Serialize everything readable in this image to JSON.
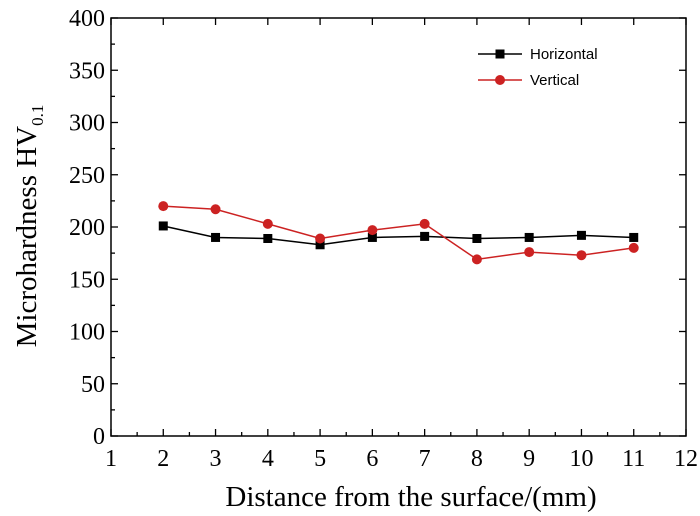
{
  "chart_data": {
    "type": "line",
    "title": "",
    "xlabel": "Distance from the surface/(mm)",
    "ylabel": "Microhardness HV",
    "ylabel_subscript": "0.1",
    "xlim": [
      1,
      12
    ],
    "ylim": [
      0,
      400
    ],
    "xticks": [
      1,
      2,
      3,
      4,
      5,
      6,
      7,
      8,
      9,
      10,
      11,
      12
    ],
    "yticks": [
      0,
      50,
      100,
      150,
      200,
      250,
      300,
      350,
      400
    ],
    "grid": false,
    "legend_position": "top-right",
    "x": [
      2,
      3,
      4,
      5,
      6,
      7,
      8,
      9,
      10,
      11
    ],
    "series": [
      {
        "name": "Horizontal",
        "color": "#000000",
        "marker": "square",
        "values": [
          201,
          190,
          189,
          183,
          190,
          191,
          189,
          190,
          192,
          190
        ]
      },
      {
        "name": "Vertical",
        "color": "#cc2222",
        "marker": "circle",
        "values": [
          220,
          217,
          203,
          189,
          197,
          203,
          169,
          176,
          173,
          180
        ]
      }
    ]
  }
}
